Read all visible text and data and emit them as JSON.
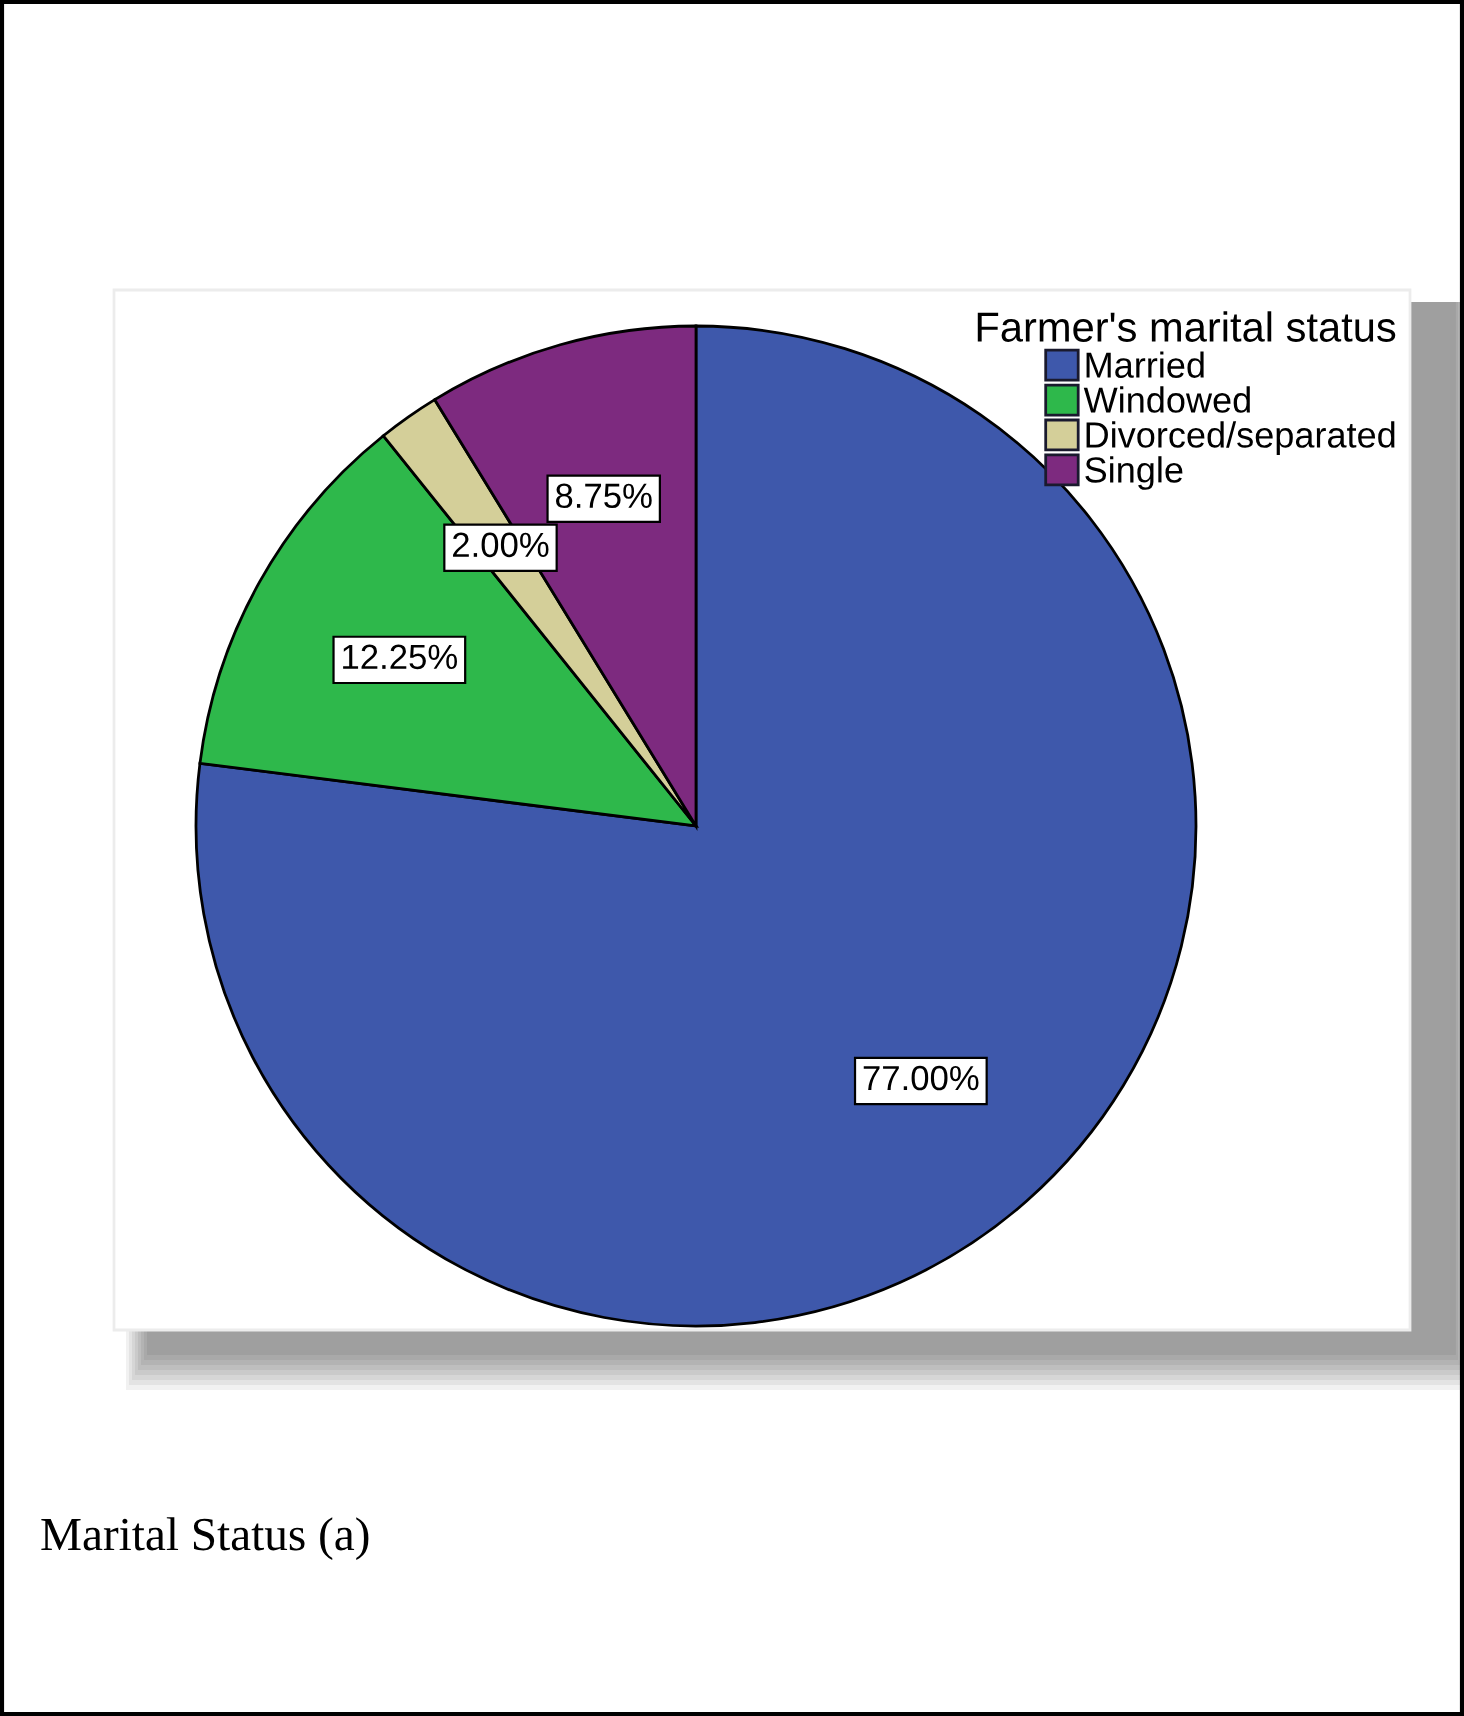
{
  "chart_data": {
    "type": "pie",
    "categories": [
      "Married",
      "Windowed",
      "Divorced/separated",
      "Single"
    ],
    "values": [
      77.0,
      12.25,
      2.0,
      8.75
    ],
    "colors": [
      "#3e58ab",
      "#2eb84b",
      "#d4cf99",
      "#7d2a7f"
    ],
    "value_labels": [
      "77.00%",
      "12.25%",
      "2.00%",
      "8.75%"
    ],
    "legend_title": "Farmer's marital status",
    "legend": "top right",
    "annotations": [
      "Marital Status (a)"
    ]
  }
}
